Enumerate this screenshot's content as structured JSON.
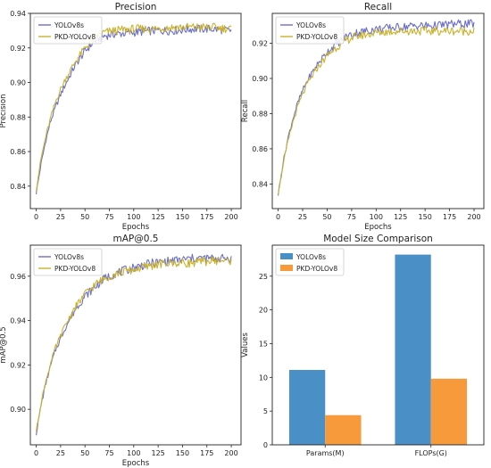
{
  "chart_data": [
    {
      "type": "line",
      "title": "Precision",
      "xlabel": "Epochs",
      "ylabel": "Precision",
      "xlim": [
        -6,
        210
      ],
      "ylim": [
        0.827,
        0.94
      ],
      "xticks": [
        0,
        25,
        50,
        75,
        100,
        125,
        150,
        175,
        200
      ],
      "yticks": [
        0.84,
        0.86,
        0.88,
        0.9,
        0.92,
        0.94
      ],
      "tick_format": 2,
      "legend": "top-left",
      "series": [
        {
          "name": "YOLOv8s",
          "color": "#6b6fc9",
          "x": [
            0,
            5,
            10,
            15,
            20,
            25,
            30,
            40,
            50,
            60,
            70,
            80,
            100,
            120,
            140,
            160,
            180,
            200
          ],
          "y": [
            0.836,
            0.853,
            0.867,
            0.878,
            0.886,
            0.893,
            0.899,
            0.91,
            0.918,
            0.924,
            0.927,
            0.928,
            0.929,
            0.93,
            0.93,
            0.931,
            0.931,
            0.93
          ]
        },
        {
          "name": "PKD-YOLOv8",
          "color": "#c9b22d",
          "x": [
            0,
            5,
            10,
            15,
            20,
            25,
            30,
            40,
            50,
            60,
            70,
            80,
            100,
            120,
            140,
            160,
            180,
            200
          ],
          "y": [
            0.838,
            0.856,
            0.869,
            0.88,
            0.889,
            0.896,
            0.902,
            0.912,
            0.92,
            0.926,
            0.929,
            0.93,
            0.931,
            0.931,
            0.932,
            0.932,
            0.932,
            0.931
          ]
        }
      ]
    },
    {
      "type": "line",
      "title": "Recall",
      "xlabel": "Epochs",
      "ylabel": "Recall",
      "xlim": [
        -6,
        210
      ],
      "ylim": [
        0.826,
        0.937
      ],
      "xticks": [
        0,
        25,
        50,
        75,
        100,
        125,
        150,
        175,
        200
      ],
      "yticks": [
        0.84,
        0.86,
        0.88,
        0.9,
        0.92
      ],
      "tick_format": 2,
      "legend": "top-left",
      "series": [
        {
          "name": "YOLOv8s",
          "color": "#6b6fc9",
          "x": [
            0,
            5,
            10,
            15,
            20,
            25,
            30,
            40,
            50,
            60,
            70,
            80,
            100,
            120,
            140,
            160,
            180,
            200
          ],
          "y": [
            0.834,
            0.852,
            0.866,
            0.877,
            0.886,
            0.893,
            0.899,
            0.908,
            0.915,
            0.92,
            0.924,
            0.926,
            0.928,
            0.929,
            0.93,
            0.93,
            0.931,
            0.931
          ]
        },
        {
          "name": "PKD-YOLOv8",
          "color": "#c9b22d",
          "x": [
            0,
            5,
            10,
            15,
            20,
            25,
            30,
            40,
            50,
            60,
            70,
            80,
            100,
            120,
            140,
            160,
            180,
            200
          ],
          "y": [
            0.835,
            0.851,
            0.864,
            0.875,
            0.884,
            0.891,
            0.897,
            0.906,
            0.913,
            0.918,
            0.922,
            0.924,
            0.926,
            0.927,
            0.927,
            0.927,
            0.927,
            0.927
          ]
        }
      ]
    },
    {
      "type": "line",
      "title": "mAP@0.5",
      "xlabel": "Epochs",
      "ylabel": "mAP@0.5",
      "xlim": [
        -6,
        210
      ],
      "ylim": [
        0.884,
        0.974
      ],
      "xticks": [
        0,
        25,
        50,
        75,
        100,
        125,
        150,
        175,
        200
      ],
      "yticks": [
        0.9,
        0.92,
        0.94,
        0.96
      ],
      "tick_format": 2,
      "legend": "top-left",
      "series": [
        {
          "name": "YOLOv8s",
          "color": "#6b6fc9",
          "x": [
            0,
            5,
            10,
            15,
            20,
            25,
            30,
            40,
            50,
            60,
            70,
            80,
            100,
            120,
            140,
            160,
            180,
            200
          ],
          "y": [
            0.889,
            0.902,
            0.912,
            0.92,
            0.927,
            0.932,
            0.937,
            0.945,
            0.951,
            0.955,
            0.959,
            0.961,
            0.964,
            0.966,
            0.967,
            0.968,
            0.968,
            0.968
          ]
        },
        {
          "name": "PKD-YOLOv8",
          "color": "#c9b22d",
          "x": [
            0,
            5,
            10,
            15,
            20,
            25,
            30,
            40,
            50,
            60,
            70,
            80,
            100,
            120,
            140,
            160,
            180,
            200
          ],
          "y": [
            0.89,
            0.903,
            0.913,
            0.921,
            0.928,
            0.933,
            0.938,
            0.946,
            0.952,
            0.956,
            0.959,
            0.961,
            0.963,
            0.965,
            0.966,
            0.966,
            0.967,
            0.967
          ]
        }
      ]
    },
    {
      "type": "bar",
      "title": "Model Size Comparison",
      "xlabel": "",
      "ylabel": "Values",
      "ylim": [
        0,
        29.6
      ],
      "yticks": [
        0,
        5,
        10,
        15,
        20,
        25
      ],
      "tick_format": 0,
      "legend": "top-left",
      "categories": [
        "Params(M)",
        "FLOPs(G)"
      ],
      "series": [
        {
          "name": "YOLOv8s",
          "color": "#4a90c6",
          "values": [
            11.1,
            28.2
          ]
        },
        {
          "name": "PKD-YOLOv8",
          "color": "#f79a3c",
          "values": [
            4.4,
            9.8
          ]
        }
      ]
    }
  ]
}
